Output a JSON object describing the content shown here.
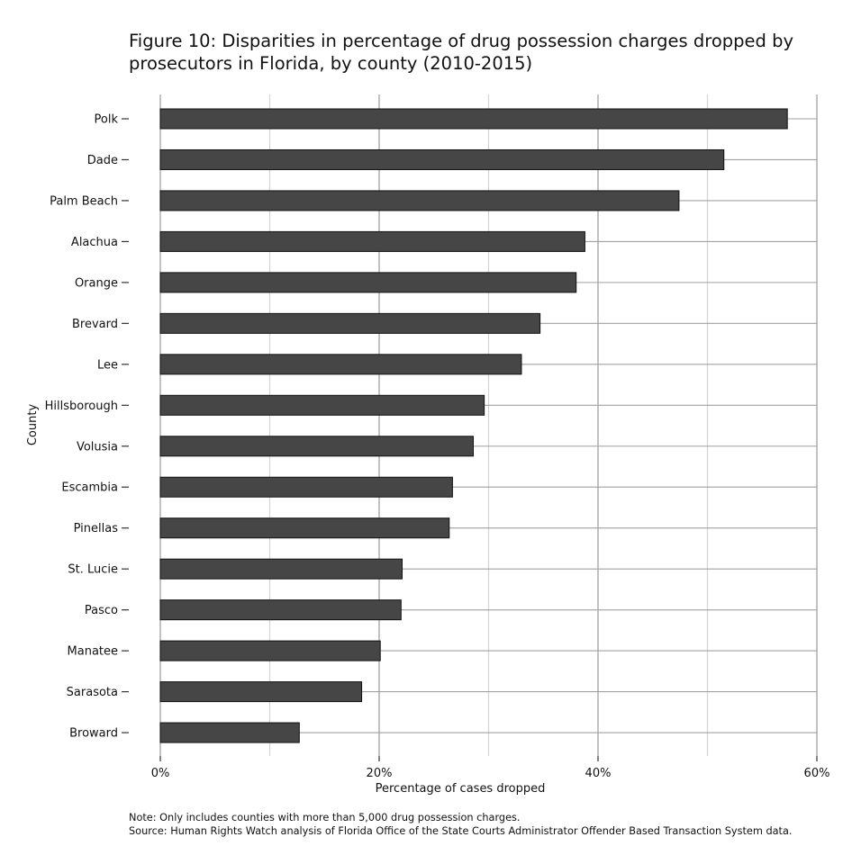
{
  "chart_data": {
    "type": "bar",
    "orientation": "horizontal",
    "title": "Figure 10: Disparities in percentage of drug possession charges dropped by prosecutors in Florida, by county (2010-2015)",
    "title_lines": [
      "Figure 10: Disparities in percentage of drug possession charges dropped by",
      "prosecutors in Florida, by county (2010-2015)"
    ],
    "xlabel": "Percentage of cases dropped",
    "ylabel": "County",
    "xlim": [
      0,
      60
    ],
    "xticks": [
      0,
      20,
      40,
      60
    ],
    "xtick_labels": [
      "0%",
      "20%",
      "40%",
      "60%"
    ],
    "grid": true,
    "categories": [
      "Polk",
      "Dade",
      "Palm Beach",
      "Alachua",
      "Orange",
      "Brevard",
      "Lee",
      "Hillsborough",
      "Volusia",
      "Escambia",
      "Pinellas",
      "St. Lucie",
      "Pasco",
      "Manatee",
      "Sarasota",
      "Broward"
    ],
    "values": [
      57.3,
      51.5,
      47.4,
      38.8,
      38.0,
      34.7,
      33.0,
      29.6,
      28.6,
      26.7,
      26.4,
      22.1,
      22.0,
      20.1,
      18.4,
      12.7
    ],
    "bar_color": "#464646",
    "notes": [
      "Note: Only includes counties with more than 5,000 drug possession charges.",
      "Source: Human Rights Watch analysis of Florida Office of the State Courts Administrator Offender Based Transaction System data."
    ]
  }
}
